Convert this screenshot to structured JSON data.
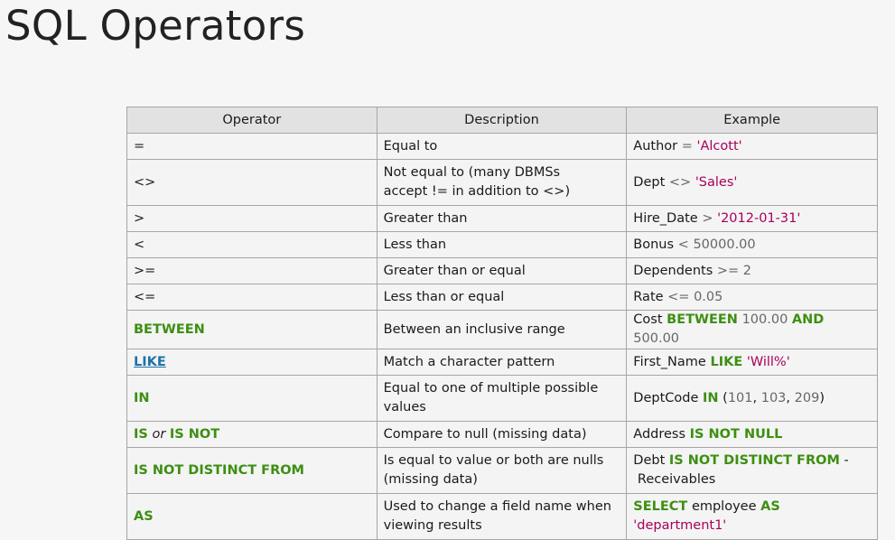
{
  "title": "SQL Operators",
  "headers": {
    "operator": "Operator",
    "description": "Description",
    "example": "Example"
  },
  "rows": [
    {
      "operator": "=",
      "description": "Equal to",
      "example": {
        "a": "Author",
        "op": "=",
        "val": "'Alcott'"
      }
    },
    {
      "operator": "<>",
      "description_line1": "Not equal to (many DBMSs",
      "description_line2": "accept != in addition to <>)",
      "example": {
        "a": "Dept",
        "op": "<>",
        "val": "'Sales'"
      }
    },
    {
      "operator": ">",
      "description": "Greater than",
      "example": {
        "a": "Hire_Date",
        "op": ">",
        "val": "'2012-01-31'"
      }
    },
    {
      "operator": "<",
      "description": "Less than",
      "example": {
        "a": "Bonus",
        "op": "<",
        "val": "50000.00"
      }
    },
    {
      "operator": ">=",
      "description": "Greater than or equal",
      "example": {
        "a": "Dependents",
        "op": ">=",
        "val": "2"
      }
    },
    {
      "operator": "<=",
      "description": "Less than or equal",
      "example": {
        "a": "Rate",
        "op": "<=",
        "val": "0.05"
      }
    },
    {
      "operator": "BETWEEN",
      "description": "Between an inclusive range",
      "example": {
        "a": "Cost",
        "kw1": "BETWEEN",
        "v1": "100.00",
        "kw2": "AND",
        "v2": "500.00"
      }
    },
    {
      "operator": "LIKE",
      "description": "Match a character pattern",
      "example": {
        "a": "First_Name",
        "kw": "LIKE",
        "val": "'Will%'"
      }
    },
    {
      "operator": "IN",
      "description_line1": "Equal to one of multiple possible",
      "description_line2": "values",
      "example": {
        "a": "DeptCode",
        "kw": "IN",
        "p1": "(",
        "v1": "101",
        "c1": ",",
        "v2": "103",
        "c2": ",",
        "v3": "209",
        "p2": ")"
      }
    },
    {
      "operator_kw1": "IS",
      "operator_or": "or",
      "operator_kw2": "IS NOT",
      "description": "Compare to null (missing data)",
      "example": {
        "a": "Address",
        "kw": "IS NOT NULL"
      }
    },
    {
      "operator": "IS NOT DISTINCT FROM",
      "description_line1": "Is equal to value or both are nulls",
      "description_line2": "(missing data)",
      "example": {
        "a": "Debt",
        "kw": "IS NOT DISTINCT FROM",
        "dash": "-",
        "b": "Receivables"
      }
    },
    {
      "operator": "AS",
      "description_line1": "Used to change a field name when",
      "description_line2": "viewing results",
      "example": {
        "kw1": "SELECT",
        "a": "employee",
        "kw2": "AS",
        "val": "'department1'"
      }
    }
  ],
  "colors": {
    "keyword": "#3d8f12",
    "link": "#1f73a6",
    "string": "#a8005a",
    "number": "#666666"
  }
}
